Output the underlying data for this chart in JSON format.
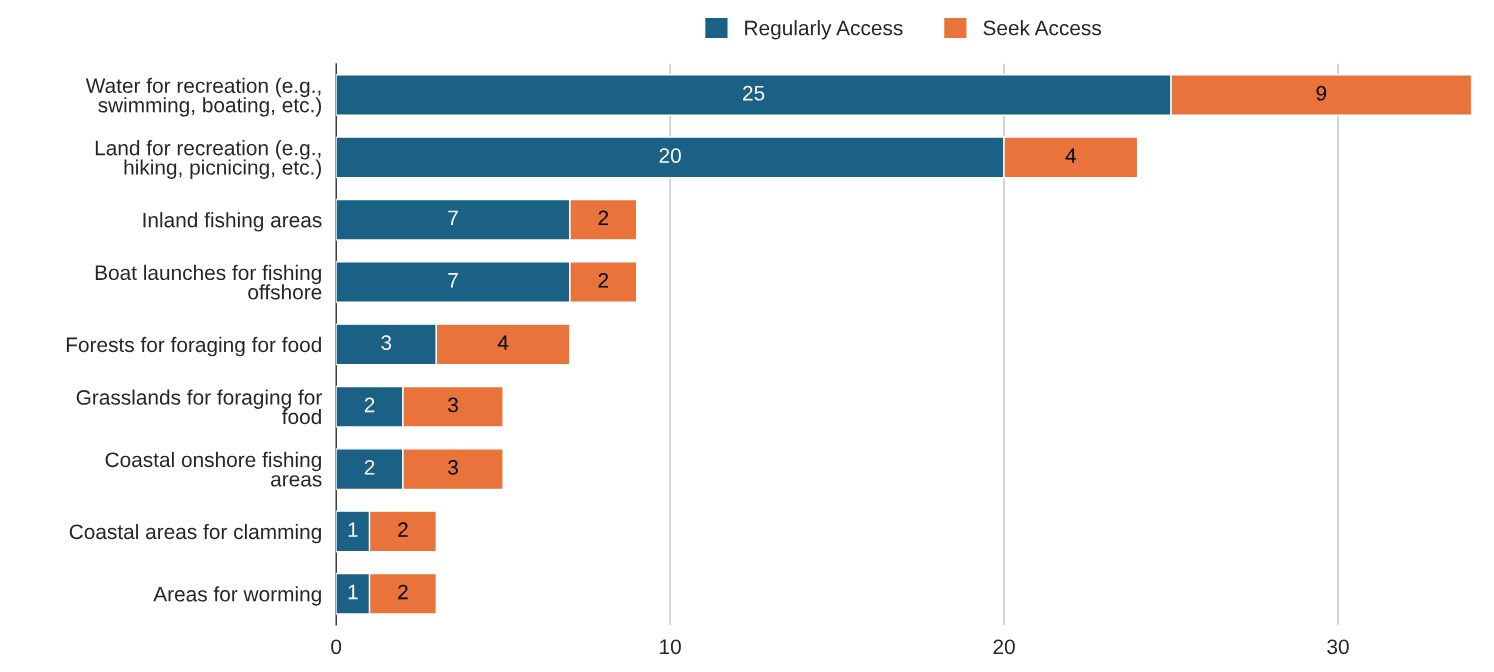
{
  "chart_data": {
    "type": "bar",
    "orientation": "horizontal",
    "stacked": true,
    "categories": [
      "Water for recreation (e.g.,\nswimming, boating, etc.)",
      "Land for recreation (e.g.,\nhiking, picnicing, etc.)",
      "Inland fishing areas",
      "Boat launches for fishing\noffshore",
      "Forests for foraging for food",
      "Grasslands for foraging for\nfood",
      "Coastal onshore fishing\nareas",
      "Coastal areas for clamming",
      "Areas for worming"
    ],
    "series": [
      {
        "name": "Regularly Access",
        "color": "#1a6185",
        "values": [
          25,
          20,
          7,
          7,
          3,
          2,
          2,
          1,
          1
        ]
      },
      {
        "name": "Seek Access",
        "color": "#e8743b",
        "values": [
          9,
          4,
          2,
          2,
          4,
          3,
          3,
          2,
          2
        ]
      }
    ],
    "xlim": [
      0,
      34
    ],
    "xticks": [
      0,
      10,
      20,
      30
    ],
    "grid": "x",
    "legend": "top",
    "data_labels": true
  }
}
